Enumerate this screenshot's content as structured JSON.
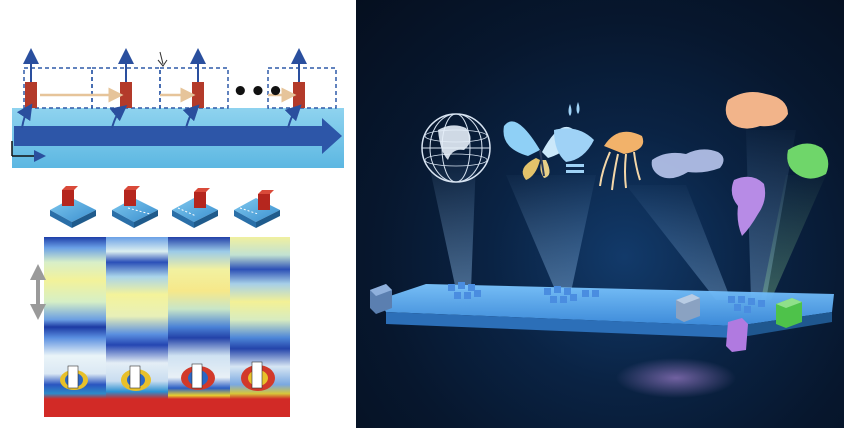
{
  "schematic": {
    "ellipsis": "•••",
    "unit_cell_count_shown": 4
  },
  "simulation": {
    "panel_count": 4,
    "resonator_count": 4
  },
  "hologram": {
    "projected_images": [
      "globe-icon",
      "butterfly-icon",
      "face-with-drops-icon",
      "jellyfish-icon",
      "world-map-icon",
      "australia-icon",
      "south-america-icon",
      "green-continent-icon"
    ],
    "colors": {
      "platform": "#5fb3ff",
      "beam": "#9fd0ff",
      "australia": "#f2b48a",
      "south_america": "#b78be6",
      "green_continent": "#6fd66a",
      "background": "#07172e"
    }
  }
}
